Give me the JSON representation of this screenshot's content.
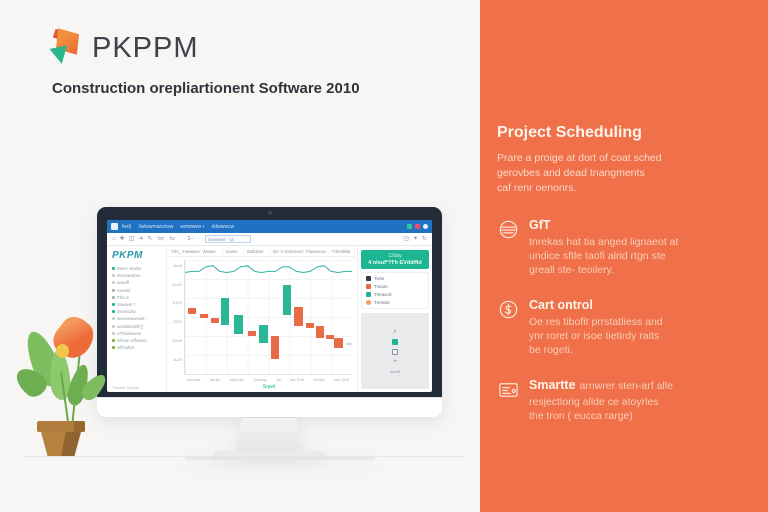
{
  "brand": {
    "logo": "PKPPM",
    "tagline": "Construction orepliartionent Software 2010",
    "colors": {
      "orange": "#ef7049",
      "teal": "#1fb394",
      "blue": "#2171c3",
      "navy": "#222c38"
    }
  },
  "screen": {
    "titlebar": {
      "menus": [
        "fwd|",
        "Jwlwwmans/ww",
        "wmwwws r",
        "ddwwwcw"
      ],
      "window_icons": [
        "teal-dot-icon",
        "close-red-icon",
        "user-circle-icon"
      ]
    },
    "toolbar": {
      "left_icons": [
        "⌂",
        "✚",
        "◫",
        "➜",
        "✎"
      ],
      "labels": [
        "fwf",
        "fw"
      ],
      "sum_label": "Σ--",
      "search_value": "Ewwwwt - (3",
      "right_icons": [
        "◳",
        "✦",
        "↻"
      ]
    },
    "sidebar": {
      "logo": "PKPM",
      "items": [
        {
          "label": "Mwm Wwbs",
          "color": "#2ab494"
        },
        {
          "label": "Wwwwwbw-",
          "color": "#c7ccd1"
        },
        {
          "label": "wwwff",
          "color": "#c7ccd1"
        },
        {
          "label": "Iwwwd",
          "color": "#aab2ba"
        },
        {
          "label": "FfcLw",
          "color": "#aab2ba"
        },
        {
          "label": "Swwwtr *",
          "color": "#2ab494"
        },
        {
          "label": "Wwwcdw",
          "color": "#2ab494"
        },
        {
          "label": "wwwwwwwwt -",
          "color": "#c7ccd1"
        },
        {
          "label": "wwdwfwwft'()",
          "color": "#c7ccd1"
        },
        {
          "label": "uTfwwwwrw",
          "color": "#c7ccd1"
        },
        {
          "label": "Wfww wffwwwr",
          "color": "#7cb342"
        },
        {
          "label": "wffcwfwt",
          "color": "#7cb342"
        }
      ],
      "footer": "Twwwrt   Swwwt"
    },
    "columns": [
      "TdA_ Fwwwcw",
      "Wasav",
      "Iyams",
      "Balldwet",
      "QV 'A Gnksevam",
      "Fluarwcas",
      "Tdtrofwlat"
    ],
    "chart_label": "Sqwd",
    "panel": {
      "infobox_line1": "12day",
      "infobox_line2": "4 nlsuf*?f'h EVdd/fld",
      "legend": [
        {
          "label": "Twist",
          "color": "#2c3a49",
          "shape": "square"
        },
        {
          "label": "Tracas",
          "color": "#e96a47",
          "shape": "square"
        },
        {
          "label": "Trleasort",
          "color": "#1fb394",
          "shape": "square"
        },
        {
          "label": "Trerarst",
          "color": "#f2a64e",
          "shape": "circle"
        }
      ],
      "tools_label": "Aex/ft"
    }
  },
  "chart_data": {
    "type": "candlestick",
    "title": "",
    "xlabel": "",
    "ylabel": "",
    "x_labels": [
      "kes-lws",
      "hw-jm",
      "Mqoujm",
      "Sqwulg",
      "-jw",
      "wd-SVb",
      "kwSjw",
      "ww-SVb"
    ],
    "y_labels": [
      "3kaft",
      "2md2",
      "e329",
      "2534",
      "32M6",
      "3u29"
    ],
    "grid": true,
    "legend_position": "right",
    "colors": {
      "up": "#29b795",
      "down": "#e96a47",
      "line": "#2fb3a3"
    },
    "line_series_y_pct": [
      11,
      10,
      10,
      6,
      5,
      10,
      11,
      10,
      6,
      5,
      10,
      11,
      10,
      10,
      6,
      6,
      10,
      11,
      10,
      6,
      5,
      10,
      11,
      10,
      10
    ],
    "candles": [
      {
        "x_pct": 1.5,
        "top_pct": 42,
        "h_pct": 5,
        "dir": "down"
      },
      {
        "x_pct": 9,
        "top_pct": 47,
        "h_pct": 4,
        "dir": "down"
      },
      {
        "x_pct": 15.5,
        "top_pct": 51,
        "h_pct": 4,
        "dir": "down"
      },
      {
        "x_pct": 21.5,
        "top_pct": 33,
        "h_pct": 24,
        "dir": "up"
      },
      {
        "x_pct": 29.5,
        "top_pct": 48,
        "h_pct": 17,
        "dir": "up"
      },
      {
        "x_pct": 37.5,
        "top_pct": 62,
        "h_pct": 5,
        "dir": "down"
      },
      {
        "x_pct": 44.5,
        "top_pct": 57,
        "h_pct": 16,
        "dir": "up"
      },
      {
        "x_pct": 51.5,
        "top_pct": 67,
        "h_pct": 20,
        "dir": "down"
      },
      {
        "x_pct": 58.5,
        "top_pct": 22,
        "h_pct": 26,
        "dir": "up"
      },
      {
        "x_pct": 65.5,
        "top_pct": 41,
        "h_pct": 17,
        "dir": "down"
      },
      {
        "x_pct": 72.5,
        "top_pct": 55,
        "h_pct": 5,
        "dir": "down"
      },
      {
        "x_pct": 78.5,
        "top_pct": 58,
        "h_pct": 10,
        "dir": "down"
      },
      {
        "x_pct": 84.5,
        "top_pct": 66,
        "h_pct": 3,
        "dir": "down"
      },
      {
        "x_pct": 89.5,
        "top_pct": 68,
        "h_pct": 9,
        "dir": "down"
      }
    ],
    "end_marker": "ww-"
  },
  "right_panel": {
    "heading": "Project Scheduling",
    "intro_lines": [
      "Prare a proige at dort of coat sched",
      "gerovbes and dead tnangments",
      "caf renr oenonrs."
    ],
    "features": [
      {
        "icon": "report-circle-icon",
        "title": "GfT",
        "suffix": "",
        "lines": [
          "tnrekas hat tia anged lignaeot at",
          "undice sftle taofi alrid rtgn ste",
          "greall ste- teoilery."
        ]
      },
      {
        "icon": "cost-circle-icon",
        "title": "Cart ontrol",
        "suffix": "",
        "lines": [
          "Oe res tibofit prrstatliess and",
          "ynr roret or isoe tietirdy raits",
          "be rogeti."
        ]
      },
      {
        "icon": "card-icon",
        "title": "Smartte",
        "suffix": "arnwrer sten-arf alle",
        "lines": [
          "resjectlorig  allde ce atoyrles",
          "the tron ( eucca rarge)"
        ]
      }
    ]
  }
}
